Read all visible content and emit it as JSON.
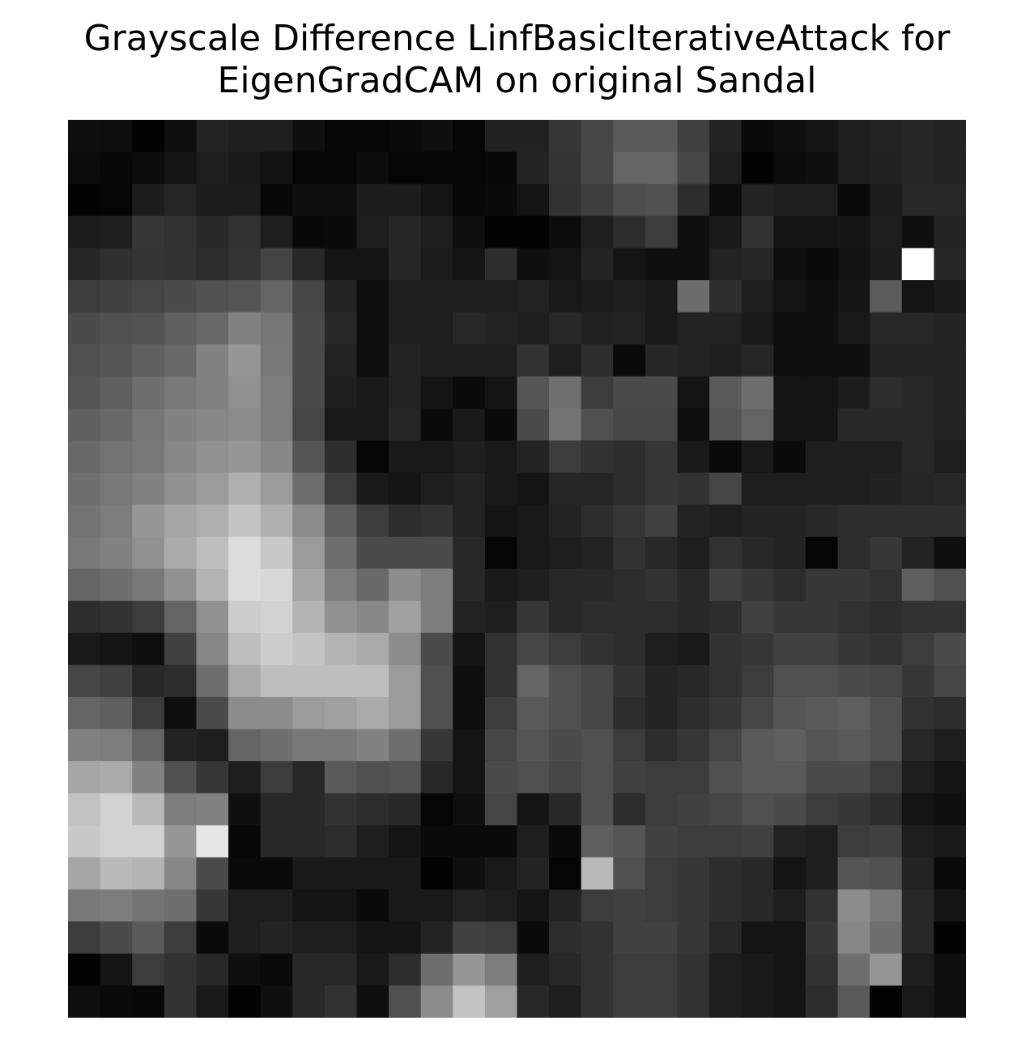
{
  "chart_data": {
    "type": "heatmap",
    "title_line1": "Grayscale Difference LinfBasicIterativeAttack for",
    "title_line2": "EigenGradCAM on original Sandal",
    "colormap": "gray",
    "axes": "off",
    "value_range": [
      0,
      255
    ],
    "rows": 28,
    "cols": 28,
    "values": [
      [
        15,
        14,
        3,
        15,
        35,
        30,
        30,
        15,
        5,
        5,
        10,
        15,
        5,
        33,
        33,
        55,
        70,
        90,
        90,
        65,
        35,
        10,
        15,
        20,
        30,
        35,
        38,
        35
      ],
      [
        12,
        8,
        12,
        20,
        30,
        25,
        18,
        5,
        5,
        12,
        5,
        5,
        5,
        8,
        35,
        52,
        72,
        100,
        100,
        70,
        30,
        3,
        12,
        15,
        30,
        33,
        38,
        35
      ],
      [
        3,
        5,
        28,
        38,
        28,
        28,
        8,
        15,
        15,
        28,
        28,
        20,
        8,
        10,
        20,
        50,
        62,
        78,
        80,
        45,
        12,
        35,
        30,
        30,
        10,
        28,
        40,
        40
      ],
      [
        28,
        30,
        55,
        50,
        40,
        50,
        30,
        8,
        10,
        30,
        38,
        30,
        15,
        3,
        3,
        12,
        30,
        45,
        60,
        15,
        25,
        50,
        20,
        20,
        22,
        30,
        15,
        35
      ],
      [
        38,
        48,
        52,
        50,
        45,
        52,
        68,
        40,
        20,
        20,
        38,
        28,
        20,
        45,
        15,
        20,
        35,
        20,
        15,
        15,
        35,
        38,
        15,
        10,
        18,
        28,
        255,
        38
      ],
      [
        60,
        65,
        70,
        75,
        80,
        85,
        100,
        70,
        35,
        15,
        30,
        30,
        30,
        30,
        35,
        25,
        28,
        30,
        25,
        108,
        45,
        30,
        20,
        15,
        22,
        92,
        20,
        25
      ],
      [
        75,
        80,
        82,
        95,
        105,
        130,
        118,
        75,
        40,
        15,
        30,
        30,
        40,
        35,
        30,
        40,
        33,
        35,
        25,
        35,
        35,
        25,
        15,
        15,
        25,
        40,
        40,
        35
      ],
      [
        80,
        85,
        95,
        105,
        130,
        150,
        120,
        75,
        35,
        15,
        35,
        30,
        30,
        30,
        50,
        30,
        45,
        10,
        38,
        35,
        30,
        38,
        15,
        15,
        15,
        35,
        35,
        35
      ],
      [
        85,
        95,
        110,
        120,
        130,
        145,
        125,
        75,
        30,
        25,
        35,
        20,
        10,
        20,
        85,
        112,
        60,
        75,
        75,
        20,
        90,
        110,
        20,
        20,
        28,
        45,
        40,
        35
      ],
      [
        95,
        105,
        118,
        130,
        135,
        140,
        125,
        70,
        25,
        25,
        38,
        10,
        25,
        10,
        75,
        115,
        80,
        70,
        70,
        15,
        85,
        100,
        20,
        20,
        40,
        40,
        40,
        35
      ],
      [
        105,
        115,
        120,
        135,
        145,
        150,
        135,
        85,
        45,
        5,
        25,
        25,
        30,
        25,
        35,
        60,
        50,
        45,
        55,
        25,
        10,
        25,
        10,
        30,
        30,
        30,
        40,
        30
      ],
      [
        110,
        120,
        130,
        145,
        155,
        175,
        155,
        110,
        60,
        25,
        20,
        30,
        35,
        25,
        20,
        38,
        38,
        45,
        55,
        50,
        70,
        30,
        30,
        30,
        30,
        33,
        38,
        40
      ],
      [
        115,
        125,
        150,
        165,
        175,
        195,
        175,
        140,
        95,
        60,
        45,
        50,
        35,
        20,
        25,
        35,
        45,
        55,
        65,
        35,
        30,
        35,
        35,
        40,
        45,
        45,
        45,
        45
      ],
      [
        120,
        130,
        145,
        170,
        190,
        220,
        200,
        155,
        110,
        75,
        75,
        75,
        40,
        5,
        25,
        30,
        35,
        50,
        40,
        30,
        50,
        40,
        35,
        5,
        45,
        55,
        35,
        15
      ],
      [
        100,
        110,
        120,
        145,
        180,
        220,
        215,
        165,
        125,
        105,
        140,
        125,
        40,
        25,
        30,
        40,
        40,
        45,
        50,
        40,
        65,
        55,
        45,
        55,
        55,
        50,
        95,
        80
      ],
      [
        45,
        50,
        60,
        100,
        145,
        205,
        210,
        180,
        145,
        135,
        160,
        125,
        35,
        30,
        55,
        40,
        45,
        45,
        45,
        40,
        45,
        65,
        55,
        55,
        50,
        45,
        50,
        50
      ],
      [
        25,
        20,
        15,
        65,
        135,
        190,
        205,
        195,
        180,
        170,
        140,
        75,
        20,
        50,
        70,
        60,
        50,
        45,
        30,
        25,
        50,
        55,
        65,
        65,
        55,
        50,
        60,
        75
      ],
      [
        70,
        65,
        40,
        45,
        110,
        170,
        190,
        190,
        190,
        190,
        155,
        80,
        15,
        50,
        100,
        80,
        70,
        50,
        35,
        40,
        50,
        60,
        80,
        80,
        75,
        70,
        55,
        70
      ],
      [
        100,
        95,
        60,
        15,
        75,
        140,
        140,
        155,
        160,
        170,
        155,
        80,
        15,
        60,
        90,
        80,
        70,
        45,
        35,
        45,
        55,
        70,
        85,
        90,
        95,
        80,
        50,
        45
      ],
      [
        130,
        125,
        100,
        35,
        30,
        100,
        110,
        120,
        120,
        130,
        110,
        55,
        20,
        70,
        85,
        75,
        80,
        60,
        45,
        55,
        70,
        90,
        95,
        85,
        90,
        80,
        40,
        30
      ],
      [
        165,
        170,
        130,
        80,
        55,
        30,
        60,
        40,
        90,
        80,
        85,
        40,
        20,
        75,
        80,
        70,
        80,
        65,
        60,
        60,
        80,
        90,
        90,
        75,
        75,
        60,
        30,
        20
      ],
      [
        195,
        210,
        185,
        125,
        130,
        15,
        40,
        40,
        50,
        45,
        40,
        5,
        15,
        70,
        20,
        40,
        80,
        45,
        60,
        65,
        70,
        80,
        75,
        60,
        55,
        45,
        20,
        15
      ],
      [
        200,
        210,
        210,
        150,
        230,
        8,
        40,
        40,
        45,
        30,
        20,
        10,
        10,
        10,
        30,
        10,
        95,
        85,
        65,
        60,
        60,
        65,
        35,
        30,
        60,
        65,
        30,
        25
      ],
      [
        165,
        185,
        180,
        135,
        75,
        10,
        10,
        25,
        25,
        25,
        25,
        3,
        15,
        25,
        35,
        5,
        185,
        80,
        60,
        55,
        45,
        40,
        20,
        30,
        85,
        80,
        35,
        10
      ],
      [
        120,
        125,
        115,
        110,
        55,
        30,
        30,
        20,
        20,
        10,
        25,
        25,
        35,
        30,
        20,
        35,
        60,
        65,
        60,
        55,
        45,
        40,
        30,
        50,
        140,
        120,
        40,
        20
      ],
      [
        60,
        75,
        90,
        60,
        10,
        30,
        35,
        30,
        30,
        20,
        20,
        35,
        65,
        60,
        10,
        45,
        50,
        65,
        65,
        55,
        40,
        20,
        20,
        55,
        135,
        110,
        40,
        3
      ],
      [
        3,
        20,
        60,
        50,
        40,
        15,
        10,
        40,
        40,
        25,
        45,
        110,
        150,
        125,
        30,
        40,
        50,
        60,
        60,
        50,
        30,
        25,
        20,
        50,
        110,
        150,
        30,
        15
      ],
      [
        15,
        10,
        8,
        50,
        25,
        3,
        15,
        40,
        50,
        15,
        80,
        140,
        195,
        160,
        40,
        30,
        50,
        60,
        60,
        50,
        30,
        25,
        20,
        45,
        90,
        3,
        25,
        15
      ]
    ]
  }
}
